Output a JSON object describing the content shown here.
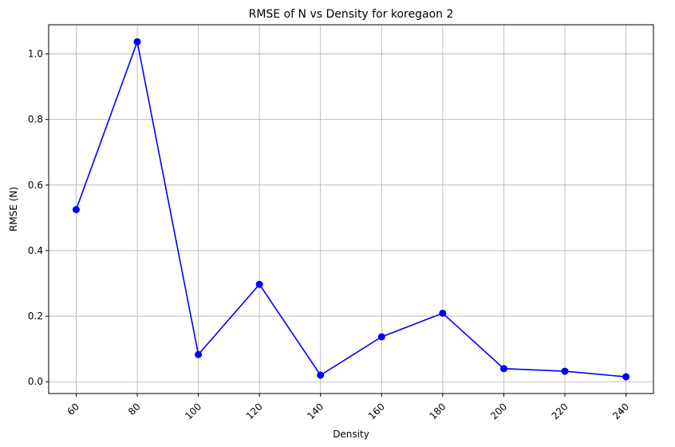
{
  "chart_data": {
    "type": "line",
    "title": "RMSE of N vs Density for koregaon 2",
    "xlabel": "Density",
    "ylabel": "RMSE (N)",
    "x": [
      60,
      80,
      100,
      120,
      140,
      160,
      180,
      200,
      220,
      240
    ],
    "series": [
      {
        "values": [
          0.525,
          1.037,
          0.083,
          0.297,
          0.02,
          0.137,
          0.209,
          0.04,
          0.032,
          0.015
        ],
        "color": "#0000ff",
        "marker": "circle"
      }
    ],
    "xticks": [
      60,
      80,
      100,
      120,
      140,
      160,
      180,
      200,
      220,
      240
    ],
    "xtick_labels": [
      "60",
      "80",
      "100",
      "120",
      "140",
      "160",
      "180",
      "200",
      "220",
      "240"
    ],
    "xtick_rotation": 45,
    "yticks": [
      0.0,
      0.2,
      0.4,
      0.6,
      0.8,
      1.0
    ],
    "ytick_labels": [
      "0.0",
      "0.2",
      "0.4",
      "0.6",
      "0.8",
      "1.0"
    ],
    "xlim": [
      51,
      249
    ],
    "ylim": [
      -0.036,
      1.089
    ],
    "grid": true
  }
}
